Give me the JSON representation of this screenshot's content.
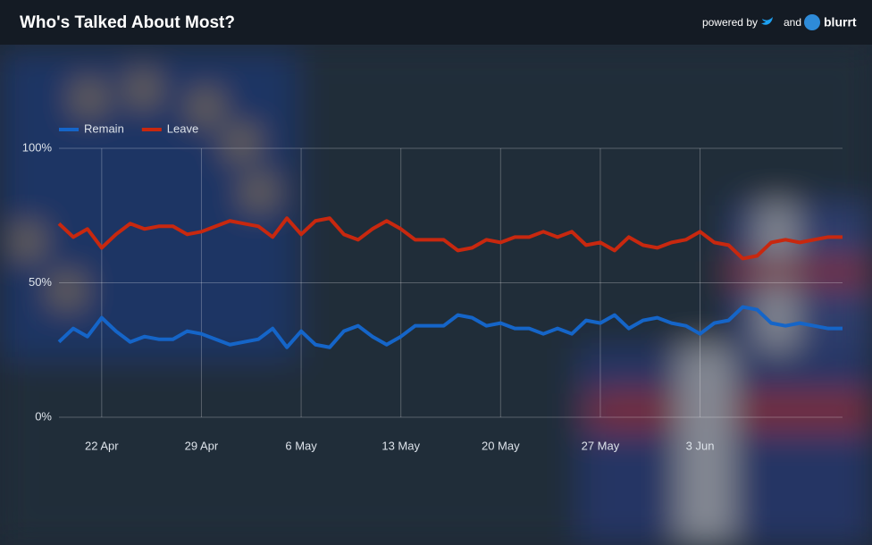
{
  "header": {
    "powered_by": "powered by",
    "and": "and",
    "brand": "blurrt"
  },
  "chart_data": {
    "type": "line",
    "title": "Who's Talked About Most?",
    "categories": [
      null,
      null,
      null,
      "22 Apr",
      null,
      null,
      null,
      null,
      null,
      null,
      "29 Apr",
      null,
      null,
      null,
      null,
      null,
      null,
      "6 May",
      null,
      null,
      null,
      null,
      null,
      null,
      "13 May",
      null,
      null,
      null,
      null,
      null,
      null,
      "20 May",
      null,
      null,
      null,
      null,
      null,
      null,
      "27 May",
      null,
      null,
      null,
      null,
      null,
      null,
      "3 Jun",
      null,
      null,
      null,
      null,
      null,
      null,
      null,
      null,
      null,
      null
    ],
    "series": [
      {
        "name": "Remain",
        "color": "#1565c8",
        "values": [
          28,
          33,
          30,
          37,
          32,
          28,
          30,
          29,
          29,
          32,
          31,
          29,
          27,
          28,
          29,
          33,
          26,
          32,
          27,
          26,
          32,
          34,
          30,
          27,
          30,
          34,
          34,
          34,
          38,
          37,
          34,
          35,
          33,
          33,
          31,
          33,
          31,
          36,
          35,
          38,
          33,
          36,
          37,
          35,
          34,
          31,
          35,
          36,
          41,
          40,
          35,
          34,
          35,
          34,
          33,
          33
        ]
      },
      {
        "name": "Leave",
        "color": "#c8280f",
        "values": [
          72,
          67,
          70,
          63,
          68,
          72,
          70,
          71,
          71,
          68,
          69,
          71,
          73,
          72,
          71,
          67,
          74,
          68,
          73,
          74,
          68,
          66,
          70,
          73,
          70,
          66,
          66,
          66,
          62,
          63,
          66,
          65,
          67,
          67,
          69,
          67,
          69,
          64,
          65,
          62,
          67,
          64,
          63,
          65,
          66,
          69,
          65,
          64,
          59,
          60,
          65,
          66,
          65,
          66,
          67,
          67
        ]
      }
    ],
    "ylim": [
      0,
      100
    ],
    "yticks": [
      {
        "value": 0,
        "label": "0%"
      },
      {
        "value": 50,
        "label": "50%"
      },
      {
        "value": 100,
        "label": "100%"
      }
    ],
    "grid": true
  }
}
